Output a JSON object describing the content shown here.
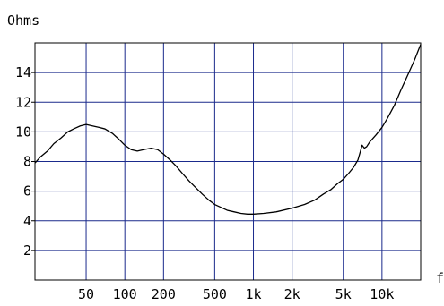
{
  "chart_data": {
    "type": "line",
    "title": "",
    "xlabel": "f",
    "ylabel": "Ohms",
    "x_scale": "log",
    "xlim": [
      20,
      20000
    ],
    "ylim": [
      0,
      16
    ],
    "grid": true,
    "x_gridlines": [
      50,
      100,
      200,
      500,
      1000,
      2000,
      5000,
      10000
    ],
    "y_gridlines": [
      2,
      4,
      6,
      8,
      10,
      12,
      14
    ],
    "x_ticks": [
      {
        "value": 50,
        "label": "50"
      },
      {
        "value": 100,
        "label": "100"
      },
      {
        "value": 200,
        "label": "200"
      },
      {
        "value": 500,
        "label": "500"
      },
      {
        "value": 1000,
        "label": "1k"
      },
      {
        "value": 2000,
        "label": "2k"
      },
      {
        "value": 5000,
        "label": "5k"
      },
      {
        "value": 10000,
        "label": "10k"
      }
    ],
    "y_ticks": [
      {
        "value": 2,
        "label": "2"
      },
      {
        "value": 4,
        "label": "4"
      },
      {
        "value": 6,
        "label": "6"
      },
      {
        "value": 8,
        "label": "8"
      },
      {
        "value": 10,
        "label": "10"
      },
      {
        "value": 12,
        "label": "12"
      },
      {
        "value": 14,
        "label": "14"
      }
    ],
    "series": [
      {
        "color": "#000000",
        "points": [
          [
            20,
            7.9
          ],
          [
            22,
            8.3
          ],
          [
            25,
            8.7
          ],
          [
            28,
            9.2
          ],
          [
            32,
            9.6
          ],
          [
            36,
            10.0
          ],
          [
            40,
            10.2
          ],
          [
            45,
            10.4
          ],
          [
            50,
            10.5
          ],
          [
            56,
            10.4
          ],
          [
            63,
            10.3
          ],
          [
            70,
            10.2
          ],
          [
            80,
            9.9
          ],
          [
            90,
            9.5
          ],
          [
            100,
            9.1
          ],
          [
            112,
            8.8
          ],
          [
            125,
            8.7
          ],
          [
            140,
            8.8
          ],
          [
            160,
            8.9
          ],
          [
            180,
            8.8
          ],
          [
            200,
            8.5
          ],
          [
            225,
            8.1
          ],
          [
            250,
            7.7
          ],
          [
            280,
            7.2
          ],
          [
            315,
            6.7
          ],
          [
            350,
            6.3
          ],
          [
            400,
            5.8
          ],
          [
            450,
            5.4
          ],
          [
            500,
            5.1
          ],
          [
            560,
            4.9
          ],
          [
            630,
            4.7
          ],
          [
            710,
            4.6
          ],
          [
            800,
            4.5
          ],
          [
            900,
            4.45
          ],
          [
            1000,
            4.45
          ],
          [
            1200,
            4.5
          ],
          [
            1500,
            4.6
          ],
          [
            2000,
            4.85
          ],
          [
            2500,
            5.1
          ],
          [
            3000,
            5.4
          ],
          [
            3500,
            5.8
          ],
          [
            4000,
            6.1
          ],
          [
            4500,
            6.5
          ],
          [
            5000,
            6.8
          ],
          [
            5500,
            7.2
          ],
          [
            6000,
            7.6
          ],
          [
            6500,
            8.1
          ],
          [
            6800,
            8.7
          ],
          [
            7000,
            9.1
          ],
          [
            7300,
            8.9
          ],
          [
            7600,
            9.0
          ],
          [
            8000,
            9.3
          ],
          [
            9000,
            9.8
          ],
          [
            10000,
            10.3
          ],
          [
            11000,
            10.9
          ],
          [
            12500,
            11.8
          ],
          [
            14000,
            12.8
          ],
          [
            16000,
            13.9
          ],
          [
            18000,
            14.9
          ],
          [
            20000,
            15.9
          ]
        ]
      }
    ]
  }
}
